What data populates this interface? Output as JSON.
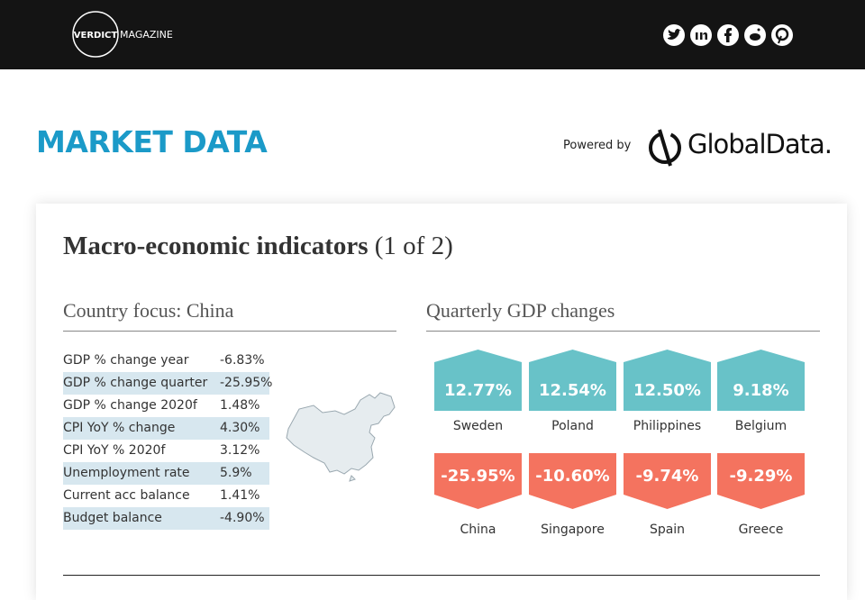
{
  "header": {
    "logo": "VERDICT",
    "logo_suffix": "MAGAZINE"
  },
  "market": {
    "title": "MARKET DATA",
    "powered_by": "Powered by",
    "brand": "GlobalData."
  },
  "card": {
    "title": "Macro-economic indicators",
    "subtitle": "(1 of 2)",
    "country_focus": {
      "heading": "Country focus: China",
      "rows": [
        [
          "GDP % change year",
          "-6.83%"
        ],
        [
          "GDP % change quarter",
          "-25.95%"
        ],
        [
          "GDP % change 2020f",
          "1.48%"
        ],
        [
          "CPI YoY % change",
          "4.30%"
        ],
        [
          "CPI YoY % 2020f",
          "3.12%"
        ],
        [
          "Unemployment rate",
          "5.9%"
        ],
        [
          "Current acc balance",
          "1.41%"
        ],
        [
          "Budget balance",
          "-4.90%"
        ]
      ]
    },
    "gdp_changes": {
      "heading": "Quarterly GDP changes",
      "gainers": [
        {
          "value": "12.77%",
          "country": "Sweden"
        },
        {
          "value": "12.54%",
          "country": "Poland"
        },
        {
          "value": "12.50%",
          "country": "Philippines"
        },
        {
          "value": "9.18%",
          "country": "Belgium"
        }
      ],
      "losers": [
        {
          "value": "-25.95%",
          "country": "China"
        },
        {
          "value": "-10.60%",
          "country": "Singapore"
        },
        {
          "value": "-9.74%",
          "country": "Spain"
        },
        {
          "value": "-9.29%",
          "country": "Greece"
        }
      ]
    }
  }
}
